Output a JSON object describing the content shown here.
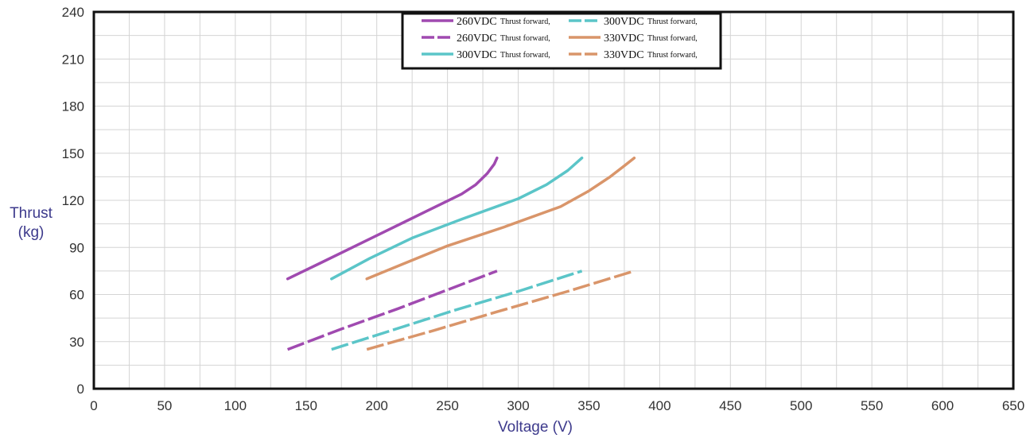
{
  "chart_data": {
    "type": "line",
    "xlabel": "Voltage (V)",
    "ylabel_line1": "Thrust",
    "ylabel_line2": "(kg)",
    "xlim": [
      0,
      650
    ],
    "ylim": [
      0,
      240
    ],
    "x_ticks": [
      0,
      50,
      100,
      150,
      200,
      250,
      300,
      350,
      400,
      450,
      500,
      550,
      600,
      650
    ],
    "y_ticks": [
      0,
      30,
      60,
      90,
      120,
      150,
      180,
      210,
      240
    ],
    "x_minor_step": 25,
    "y_minor_step": 15,
    "grid": true,
    "legend_position": "top-center",
    "series": [
      {
        "vdc": "260VDC",
        "note": "Thrust forward,",
        "style": "solid",
        "color": "#a04ab0",
        "points": [
          [
            137,
            70
          ],
          [
            160,
            80
          ],
          [
            185,
            91
          ],
          [
            210,
            102
          ],
          [
            235,
            113
          ],
          [
            260,
            124
          ],
          [
            270,
            130
          ],
          [
            278,
            137
          ],
          [
            283,
            143
          ],
          [
            285,
            147
          ]
        ]
      },
      {
        "vdc": "260VDC",
        "note": "Thrust forward,",
        "style": "dashed",
        "color": "#a04ab0",
        "points": [
          [
            137,
            25
          ],
          [
            175,
            38
          ],
          [
            215,
            51
          ],
          [
            250,
            63
          ],
          [
            285,
            75
          ]
        ]
      },
      {
        "vdc": "300VDC",
        "note": "Thrust forward,",
        "style": "solid",
        "color": "#5bc5c8",
        "points": [
          [
            168,
            70
          ],
          [
            195,
            83
          ],
          [
            225,
            96
          ],
          [
            260,
            108
          ],
          [
            300,
            121
          ],
          [
            320,
            130
          ],
          [
            335,
            139
          ],
          [
            345,
            147
          ]
        ]
      },
      {
        "vdc": "300VDC",
        "note": "Thrust forward,",
        "style": "dashed",
        "color": "#5bc5c8",
        "points": [
          [
            168,
            25
          ],
          [
            210,
            37
          ],
          [
            255,
            50
          ],
          [
            300,
            62
          ],
          [
            345,
            75
          ]
        ]
      },
      {
        "vdc": "330VDC",
        "note": "Thrust forward,",
        "style": "solid",
        "color": "#d9956a",
        "points": [
          [
            193,
            70
          ],
          [
            220,
            80
          ],
          [
            250,
            91
          ],
          [
            290,
            103
          ],
          [
            330,
            116
          ],
          [
            350,
            126
          ],
          [
            365,
            135
          ],
          [
            375,
            142
          ],
          [
            382,
            147
          ]
        ]
      },
      {
        "vdc": "330VDC",
        "note": "Thrust forward,",
        "style": "dashed",
        "color": "#d9956a",
        "points": [
          [
            193,
            25
          ],
          [
            240,
            37
          ],
          [
            285,
            49
          ],
          [
            335,
            62
          ],
          [
            382,
            75
          ]
        ]
      }
    ]
  }
}
